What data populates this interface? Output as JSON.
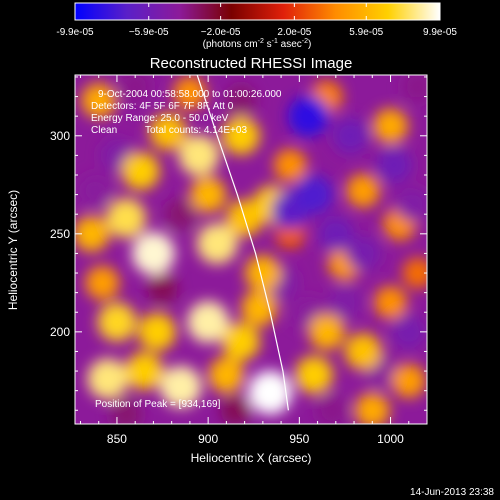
{
  "chart_data": {
    "type": "heatmap",
    "title": "Reconstructed RHESSI Image",
    "xlabel": "Heliocentric X (arcsec)",
    "ylabel": "Heliocentric Y (arcsec)",
    "xlim": [
      827,
      1020
    ],
    "ylim": [
      153,
      331
    ],
    "x_ticks": [
      850,
      900,
      950,
      1000
    ],
    "y_ticks": [
      200,
      250,
      300
    ],
    "grid": false,
    "colorbar": {
      "location": "top",
      "range": [
        -9.9e-05,
        9.9e-05
      ],
      "tick_values": [
        -9.9e-05,
        -5.9e-05,
        -2e-05,
        2e-05,
        5.9e-05,
        9.9e-05
      ],
      "tick_labels": [
        "-9.9e-05",
        "−5.9e-05",
        "−2.0e-05",
        "2.0e-05",
        "5.9e-05",
        "9.9e-05"
      ],
      "unit_label": "(photons cm",
      "unit_exp1": "-2",
      "unit_mid": " s",
      "unit_exp2": "-1",
      "unit_mid2": " asec",
      "unit_exp3": "-2",
      "unit_close": ")",
      "colors": [
        "#0000ff",
        "#5a1fc8",
        "#8c1a9a",
        "#7a0000",
        "#e0200a",
        "#ff8c00",
        "#ffd000",
        "#ffffff"
      ]
    },
    "annotations": {
      "time_range": "9-Oct-2004 00:58:58.000 to 01:00:26.000",
      "detectors": "Detectors: 4F 5F 6F 7F 8F, Att 0",
      "energy": "Energy Range: 25.0 - 50.0 keV",
      "method": "Clean",
      "total_counts": "Total counts: 4.14E+03",
      "peak": "Position of Peak = [934,169]"
    },
    "limb": [
      {
        "x": 894,
        "y": 331
      },
      {
        "x": 905,
        "y": 300
      },
      {
        "x": 916,
        "y": 270
      },
      {
        "x": 926,
        "y": 240
      },
      {
        "x": 934,
        "y": 210
      },
      {
        "x": 941,
        "y": 180
      },
      {
        "x": 944,
        "y": 160
      }
    ],
    "sources": [
      {
        "x": 836,
        "y": 250,
        "v": 0.6
      },
      {
        "x": 855,
        "y": 258,
        "v": 0.8
      },
      {
        "x": 870,
        "y": 240,
        "v": 0.95
      },
      {
        "x": 863,
        "y": 282,
        "v": 0.7
      },
      {
        "x": 878,
        "y": 302,
        "v": 0.65
      },
      {
        "x": 895,
        "y": 290,
        "v": 0.85
      },
      {
        "x": 900,
        "y": 270,
        "v": 0.6
      },
      {
        "x": 918,
        "y": 300,
        "v": 0.7
      },
      {
        "x": 905,
        "y": 245,
        "v": 0.85
      },
      {
        "x": 920,
        "y": 258,
        "v": 0.65
      },
      {
        "x": 935,
        "y": 265,
        "v": 0.7
      },
      {
        "x": 930,
        "y": 230,
        "v": 0.6
      },
      {
        "x": 850,
        "y": 205,
        "v": 0.75
      },
      {
        "x": 872,
        "y": 200,
        "v": 0.7
      },
      {
        "x": 900,
        "y": 205,
        "v": 0.9
      },
      {
        "x": 918,
        "y": 195,
        "v": 0.7
      },
      {
        "x": 928,
        "y": 212,
        "v": 0.6
      },
      {
        "x": 845,
        "y": 176,
        "v": 0.85
      },
      {
        "x": 865,
        "y": 180,
        "v": 0.7
      },
      {
        "x": 885,
        "y": 172,
        "v": 0.9
      },
      {
        "x": 910,
        "y": 178,
        "v": 0.6
      },
      {
        "x": 934,
        "y": 169,
        "v": 1.0
      },
      {
        "x": 958,
        "y": 178,
        "v": 0.7
      },
      {
        "x": 965,
        "y": 200,
        "v": 0.6
      },
      {
        "x": 985,
        "y": 190,
        "v": 0.65
      },
      {
        "x": 990,
        "y": 160,
        "v": 0.55
      },
      {
        "x": 1010,
        "y": 175,
        "v": 0.5
      },
      {
        "x": 1000,
        "y": 215,
        "v": 0.45
      },
      {
        "x": 975,
        "y": 235,
        "v": 0.5
      },
      {
        "x": 1005,
        "y": 255,
        "v": 0.45
      },
      {
        "x": 985,
        "y": 272,
        "v": 0.5
      },
      {
        "x": 945,
        "y": 285,
        "v": 0.45
      },
      {
        "x": 1000,
        "y": 305,
        "v": 0.55
      },
      {
        "x": 965,
        "y": 320,
        "v": 0.4
      },
      {
        "x": 840,
        "y": 318,
        "v": 0.55
      },
      {
        "x": 842,
        "y": 225,
        "v": 0.5
      },
      {
        "x": 890,
        "y": 322,
        "v": 0.45
      },
      {
        "x": 1015,
        "y": 230,
        "v": 0.35
      },
      {
        "x": 945,
        "y": 250,
        "v": 0.3
      },
      {
        "x": 860,
        "y": 325,
        "v": -0.4
      },
      {
        "x": 850,
        "y": 290,
        "v": -0.5
      },
      {
        "x": 885,
        "y": 260,
        "v": -0.35
      },
      {
        "x": 838,
        "y": 272,
        "v": -0.45
      },
      {
        "x": 875,
        "y": 222,
        "v": -0.3
      },
      {
        "x": 955,
        "y": 310,
        "v": -0.85
      },
      {
        "x": 978,
        "y": 300,
        "v": -0.6
      },
      {
        "x": 958,
        "y": 270,
        "v": -0.75
      },
      {
        "x": 945,
        "y": 262,
        "v": -0.7
      },
      {
        "x": 970,
        "y": 250,
        "v": -0.6
      },
      {
        "x": 985,
        "y": 240,
        "v": -0.55
      },
      {
        "x": 1002,
        "y": 285,
        "v": -0.6
      },
      {
        "x": 1012,
        "y": 265,
        "v": -0.5
      },
      {
        "x": 940,
        "y": 225,
        "v": -0.5
      },
      {
        "x": 955,
        "y": 210,
        "v": -0.45
      },
      {
        "x": 975,
        "y": 215,
        "v": -0.5
      },
      {
        "x": 1010,
        "y": 200,
        "v": -0.55
      },
      {
        "x": 995,
        "y": 180,
        "v": -0.45
      },
      {
        "x": 1015,
        "y": 325,
        "v": -0.4
      },
      {
        "x": 968,
        "y": 160,
        "v": -0.4
      },
      {
        "x": 915,
        "y": 160,
        "v": -0.3
      },
      {
        "x": 855,
        "y": 158,
        "v": -0.35
      },
      {
        "x": 918,
        "y": 318,
        "v": -0.35
      }
    ]
  },
  "footer": {
    "timestamp": "14-Jun-2013 23:38"
  }
}
